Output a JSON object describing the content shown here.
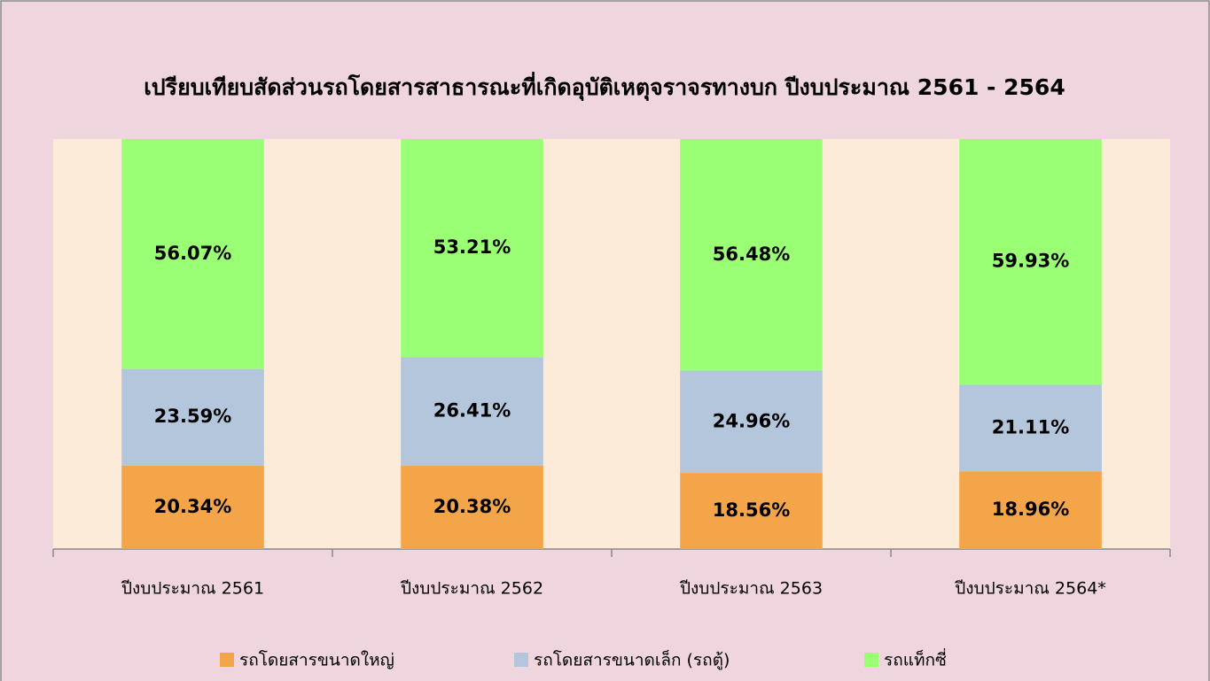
{
  "chart_data": {
    "type": "stacked_bar",
    "title": "เปรียบเทียบสัดส่วนรถโดยสารสาธารณะที่เกิดอุบัติเหตุจราจรทางบก ปีงบประมาณ 2561 - 2564",
    "categories": [
      "ปีงบประมาณ 2561",
      "ปีงบประมาณ 2562",
      "ปีงบประมาณ 2563",
      "ปีงบประมาณ 2564*"
    ],
    "ylim": [
      0,
      100
    ],
    "series": [
      {
        "name": "รถโดยสารขนาดใหญ่",
        "color": "#f4a54a",
        "values": [
          20.34,
          20.38,
          18.56,
          18.96
        ],
        "value_labels": [
          "20.34%",
          "20.38%",
          "18.56%",
          "18.96%"
        ]
      },
      {
        "name": "รถโดยสารขนาดเล็ก (รถตู้)",
        "color": "#b4c6dc",
        "values": [
          23.59,
          26.41,
          24.96,
          21.11
        ],
        "value_labels": [
          "23.59%",
          "26.41%",
          "24.96%",
          "21.11%"
        ]
      },
      {
        "name": "รถแท็กซี่",
        "color": "#9bff75",
        "values": [
          56.07,
          53.21,
          56.48,
          59.93
        ],
        "value_labels": [
          "56.07%",
          "53.21%",
          "56.48%",
          "59.93%"
        ]
      }
    ]
  }
}
